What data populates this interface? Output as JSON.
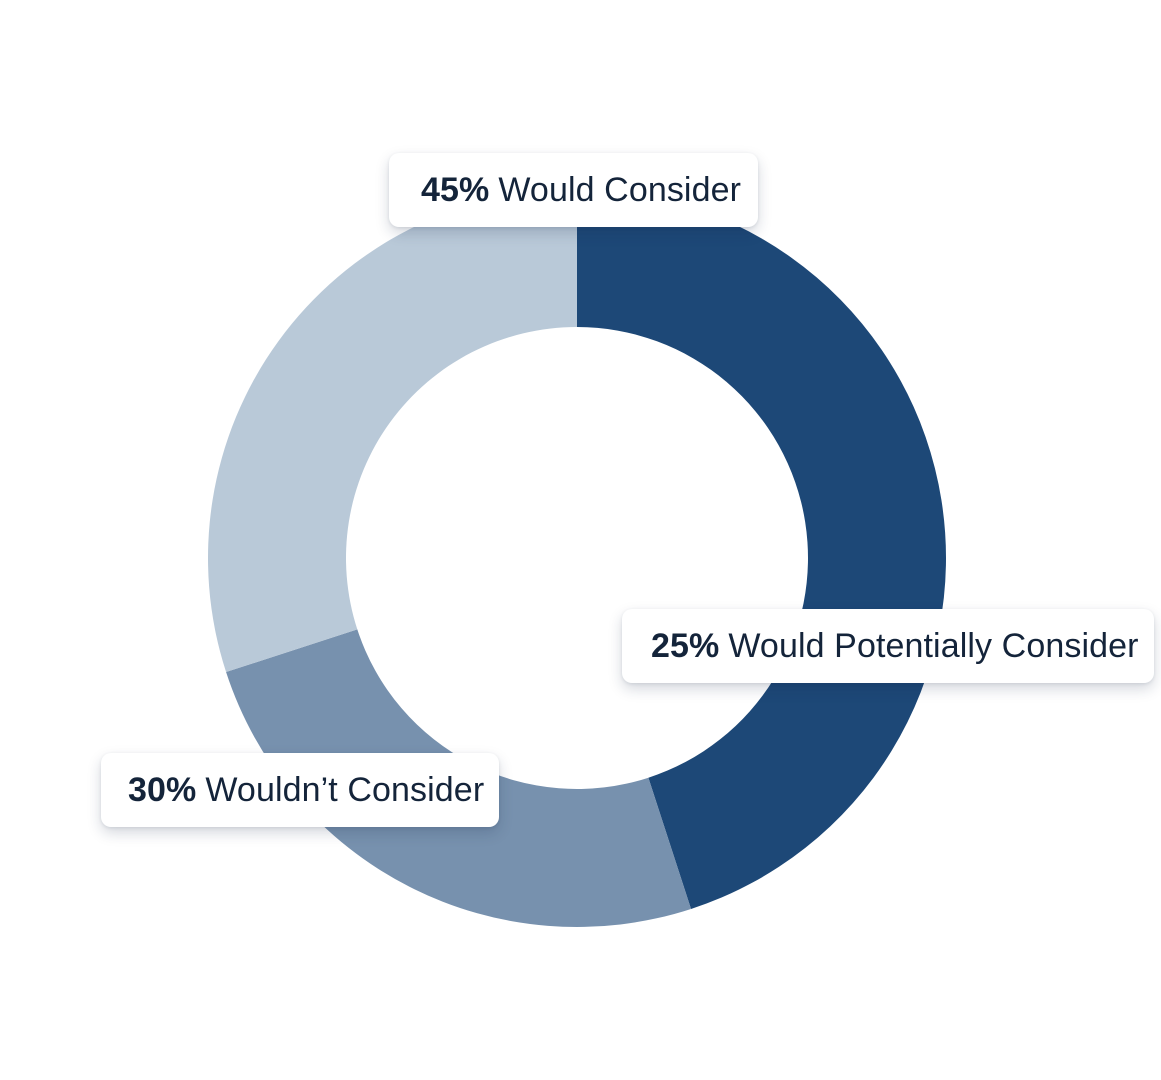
{
  "chart_data": {
    "type": "pie",
    "donut": true,
    "categories": [
      "Would Consider",
      "Would Potentially Consider",
      "Wouldn’t Consider"
    ],
    "values": [
      45,
      25,
      30
    ],
    "percent_labels": [
      "45%",
      "25%",
      "30%"
    ],
    "colors": [
      "#1d4877",
      "#7791ae",
      "#b9c9d8"
    ],
    "start_angle_deg": 270,
    "direction": "clockwise",
    "title": "",
    "legend": "none"
  }
}
